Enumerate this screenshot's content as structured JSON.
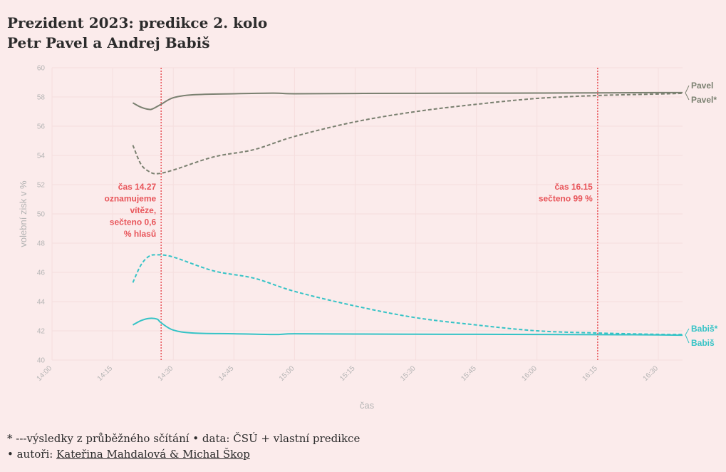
{
  "title": {
    "line1": "Prezident 2023: predikce 2. kolo",
    "line2": "Petr Pavel a Andrej Babiš"
  },
  "chart_data": {
    "type": "line",
    "xlabel": "čas",
    "ylabel": "volební zisk v %",
    "xlim": [
      "14:00",
      "16:36"
    ],
    "ylim": [
      40,
      60
    ],
    "x_ticks": [
      "14:00",
      "14:15",
      "14:30",
      "14:45",
      "15:00",
      "15:15",
      "15:30",
      "15:45",
      "16:00",
      "16:15",
      "16:30"
    ],
    "y_ticks": [
      40,
      42,
      44,
      46,
      48,
      50,
      52,
      54,
      56,
      58,
      60
    ],
    "grid": true,
    "colors": {
      "pavel": "#7a8070",
      "babis": "#35c3c6",
      "annotation": "#e8555a"
    },
    "series": [
      {
        "name": "Pavel",
        "key": "pavel",
        "style": "solid",
        "x": [
          "14:20",
          "14:22",
          "14:24",
          "14:25",
          "14:27",
          "14:30",
          "14:35",
          "14:45",
          "14:55",
          "15:00",
          "15:15",
          "15:30",
          "15:45",
          "16:00",
          "16:15",
          "16:30",
          "16:36"
        ],
        "values": [
          57.6,
          57.3,
          57.15,
          57.2,
          57.5,
          57.95,
          58.15,
          58.22,
          58.26,
          58.22,
          58.24,
          58.25,
          58.26,
          58.27,
          58.28,
          58.3,
          58.3
        ]
      },
      {
        "name": "Pavel*",
        "key": "pavel",
        "style": "dashed",
        "x": [
          "14:20",
          "14:22",
          "14:24",
          "14:26",
          "14:30",
          "14:40",
          "14:50",
          "15:00",
          "15:15",
          "15:30",
          "15:45",
          "16:00",
          "16:15",
          "16:30",
          "16:36"
        ],
        "values": [
          54.7,
          53.4,
          52.9,
          52.75,
          53.0,
          53.9,
          54.4,
          55.3,
          56.3,
          57.0,
          57.5,
          57.9,
          58.1,
          58.2,
          58.25
        ]
      },
      {
        "name": "Babiš*",
        "key": "babis",
        "style": "dashed",
        "x": [
          "14:20",
          "14:22",
          "14:24",
          "14:26",
          "14:30",
          "14:40",
          "14:50",
          "15:00",
          "15:15",
          "15:30",
          "15:45",
          "16:00",
          "16:15",
          "16:30",
          "16:36"
        ],
        "values": [
          45.3,
          46.5,
          47.1,
          47.2,
          47.05,
          46.1,
          45.6,
          44.7,
          43.7,
          42.9,
          42.4,
          42.0,
          41.85,
          41.76,
          41.75
        ]
      },
      {
        "name": "Babiš",
        "key": "babis",
        "style": "solid",
        "x": [
          "14:20",
          "14:22",
          "14:24",
          "14:26",
          "14:27",
          "14:30",
          "14:35",
          "14:45",
          "14:55",
          "15:00",
          "15:15",
          "15:30",
          "15:45",
          "16:00",
          "16:15",
          "16:30",
          "16:36"
        ],
        "values": [
          42.4,
          42.7,
          42.85,
          42.8,
          42.55,
          42.05,
          41.85,
          41.8,
          41.75,
          41.8,
          41.78,
          41.77,
          41.76,
          41.75,
          41.74,
          41.72,
          41.7
        ]
      }
    ],
    "annotations": [
      {
        "x": "14:27",
        "lines": [
          "čas 14.27",
          "oznamujeme",
          "vítěze,",
          "sečteno 0,6",
          "% hlasů"
        ]
      },
      {
        "x": "16:15",
        "lines": [
          "čas 16.15",
          "sečteno 99 %"
        ]
      }
    ]
  },
  "footer": {
    "line1": "* ---výsledky z průběžného sčítání • data: ČSÚ + vlastní predikce",
    "line2_prefix": "• autoři: ",
    "authors_link": "Kateřina Mahdalová & Michal Škop"
  }
}
